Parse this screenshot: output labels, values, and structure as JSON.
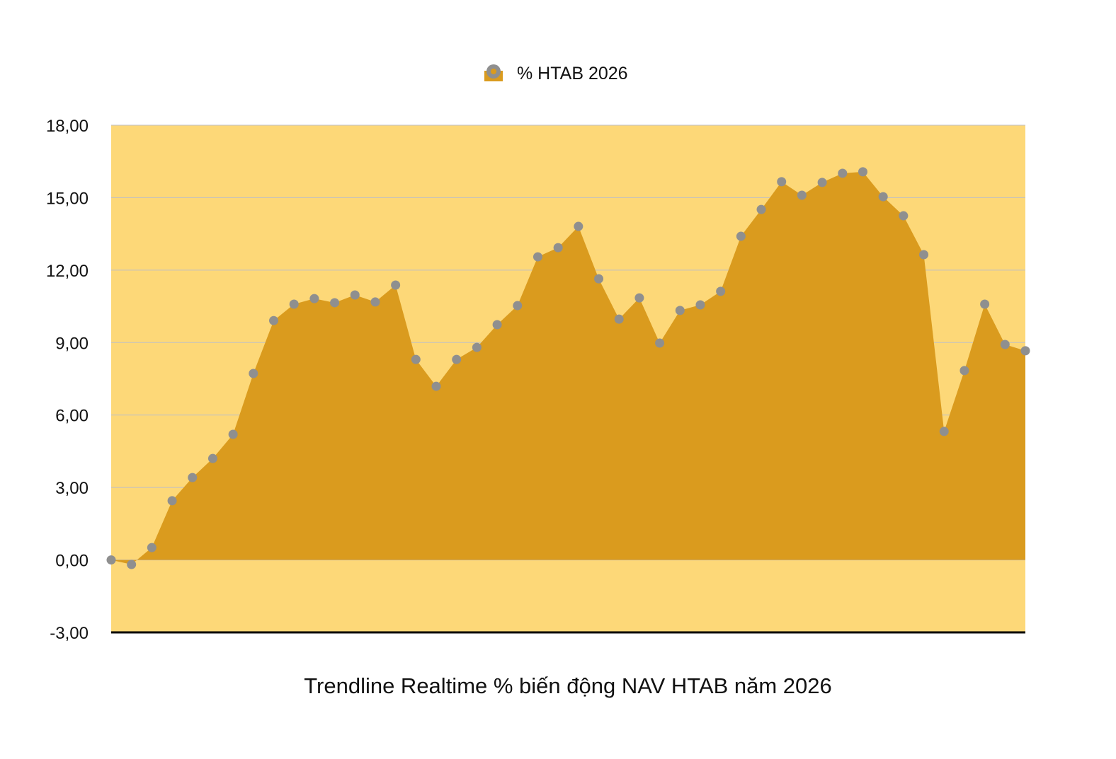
{
  "chart_data": {
    "type": "area",
    "title": "",
    "xlabel": "Trendline Realtime % biến động NAV HTAB năm 2026",
    "ylabel": "",
    "ylim": [
      -3,
      18
    ],
    "yticks": [
      18,
      15,
      12,
      9,
      6,
      3,
      0,
      -3
    ],
    "ytick_labels": [
      "18,00",
      "15,00",
      "12,00",
      "9,00",
      "6,00",
      "3,00",
      "0,00",
      "-3,00"
    ],
    "grid": true,
    "legend_position": "top-center",
    "series": [
      {
        "name": "% HTAB 2026",
        "values": [
          0.0,
          -0.19,
          0.51,
          2.45,
          3.41,
          4.2,
          5.2,
          7.72,
          9.91,
          10.59,
          10.82,
          10.65,
          10.97,
          10.68,
          11.38,
          8.3,
          7.19,
          8.3,
          8.8,
          9.74,
          10.53,
          12.55,
          12.93,
          13.81,
          11.64,
          9.97,
          10.85,
          8.98,
          10.33,
          10.56,
          11.12,
          13.4,
          14.51,
          15.66,
          15.1,
          15.63,
          16.01,
          16.07,
          15.04,
          14.25,
          12.64,
          5.32,
          7.84,
          10.59,
          8.92,
          8.66
        ]
      }
    ],
    "colors": {
      "plot_background": "#FDD878",
      "area_fill": "#DA9B1E",
      "marker": "#8F8F8F",
      "gridline": "#BFBFC4",
      "axis": "#000000"
    }
  }
}
